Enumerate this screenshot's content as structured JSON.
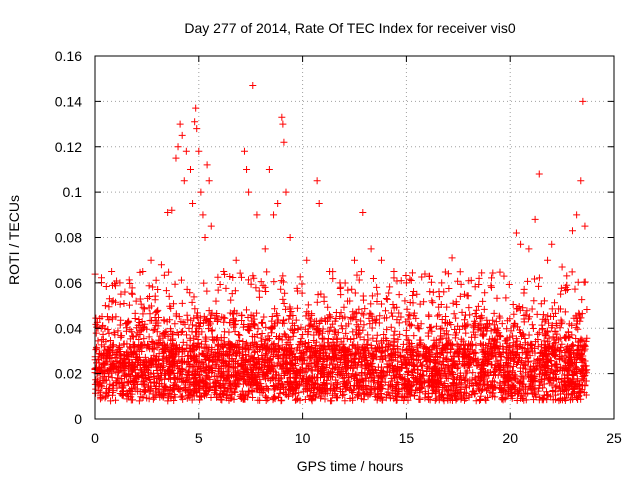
{
  "chart_data": {
    "type": "scatter",
    "title": "Day 277 of 2014, Rate Of TEC Index for receiver vis0",
    "xlabel": "GPS time / hours",
    "ylabel": "ROTI / TECUs",
    "xlim": [
      0,
      25
    ],
    "ylim": [
      0,
      0.16
    ],
    "xticks": [
      0,
      5,
      10,
      15,
      20,
      25
    ],
    "yticks": [
      0,
      0.02,
      0.04,
      0.06,
      0.08,
      0.1,
      0.12,
      0.14,
      0.16
    ],
    "xtick_labels": [
      "0",
      "5",
      "10",
      "15",
      "20",
      "25"
    ],
    "ytick_labels": [
      "0",
      "0.02",
      "0.04",
      "0.06",
      "0.08",
      "0.1",
      "0.12",
      "0.14",
      "0.16"
    ],
    "grid": true,
    "marker": "+",
    "color": "#ff0000",
    "series": [
      {
        "name": "ROTI",
        "note": "dense band of points roughly 0.005–0.06 TECU/s spanning 0–23.7 h; representative outliers listed",
        "points": [
          [
            0.1,
            0.02
          ],
          [
            0.3,
            0.04
          ],
          [
            0.5,
            0.05
          ],
          [
            0.8,
            0.065
          ],
          [
            1.2,
            0.06
          ],
          [
            1.8,
            0.055
          ],
          [
            2.3,
            0.065
          ],
          [
            2.7,
            0.07
          ],
          [
            3.2,
            0.068
          ],
          [
            3.5,
            0.091
          ],
          [
            3.7,
            0.092
          ],
          [
            3.9,
            0.115
          ],
          [
            4.0,
            0.12
          ],
          [
            4.1,
            0.13
          ],
          [
            4.2,
            0.125
          ],
          [
            4.3,
            0.105
          ],
          [
            4.4,
            0.118
          ],
          [
            4.6,
            0.11
          ],
          [
            4.7,
            0.095
          ],
          [
            4.8,
            0.131
          ],
          [
            4.85,
            0.137
          ],
          [
            4.9,
            0.128
          ],
          [
            5.0,
            0.118
          ],
          [
            5.1,
            0.1
          ],
          [
            5.2,
            0.09
          ],
          [
            5.3,
            0.08
          ],
          [
            5.4,
            0.112
          ],
          [
            5.5,
            0.105
          ],
          [
            5.6,
            0.085
          ],
          [
            6.2,
            0.065
          ],
          [
            6.8,
            0.07
          ],
          [
            7.2,
            0.118
          ],
          [
            7.3,
            0.11
          ],
          [
            7.4,
            0.1
          ],
          [
            7.6,
            0.147
          ],
          [
            7.8,
            0.09
          ],
          [
            8.2,
            0.075
          ],
          [
            8.4,
            0.11
          ],
          [
            8.6,
            0.09
          ],
          [
            8.8,
            0.095
          ],
          [
            9.0,
            0.133
          ],
          [
            9.05,
            0.13
          ],
          [
            9.1,
            0.122
          ],
          [
            9.2,
            0.1
          ],
          [
            9.4,
            0.08
          ],
          [
            10.2,
            0.07
          ],
          [
            10.7,
            0.105
          ],
          [
            10.8,
            0.095
          ],
          [
            11.3,
            0.065
          ],
          [
            11.8,
            0.06
          ],
          [
            12.5,
            0.07
          ],
          [
            12.9,
            0.091
          ],
          [
            13.3,
            0.075
          ],
          [
            13.8,
            0.07
          ],
          [
            14.4,
            0.065
          ],
          [
            15.0,
            0.06
          ],
          [
            15.5,
            0.055
          ],
          [
            16.1,
            0.063
          ],
          [
            16.7,
            0.06
          ],
          [
            17.2,
            0.071
          ],
          [
            17.8,
            0.055
          ],
          [
            18.5,
            0.062
          ],
          [
            19.1,
            0.058
          ],
          [
            19.7,
            0.063
          ],
          [
            20.3,
            0.082
          ],
          [
            20.5,
            0.077
          ],
          [
            20.9,
            0.075
          ],
          [
            21.2,
            0.088
          ],
          [
            21.4,
            0.108
          ],
          [
            21.8,
            0.07
          ],
          [
            22.0,
            0.077
          ],
          [
            22.5,
            0.067
          ],
          [
            23.0,
            0.083
          ],
          [
            23.2,
            0.09
          ],
          [
            23.4,
            0.105
          ],
          [
            23.5,
            0.14
          ],
          [
            23.6,
            0.085
          ]
        ]
      }
    ]
  }
}
